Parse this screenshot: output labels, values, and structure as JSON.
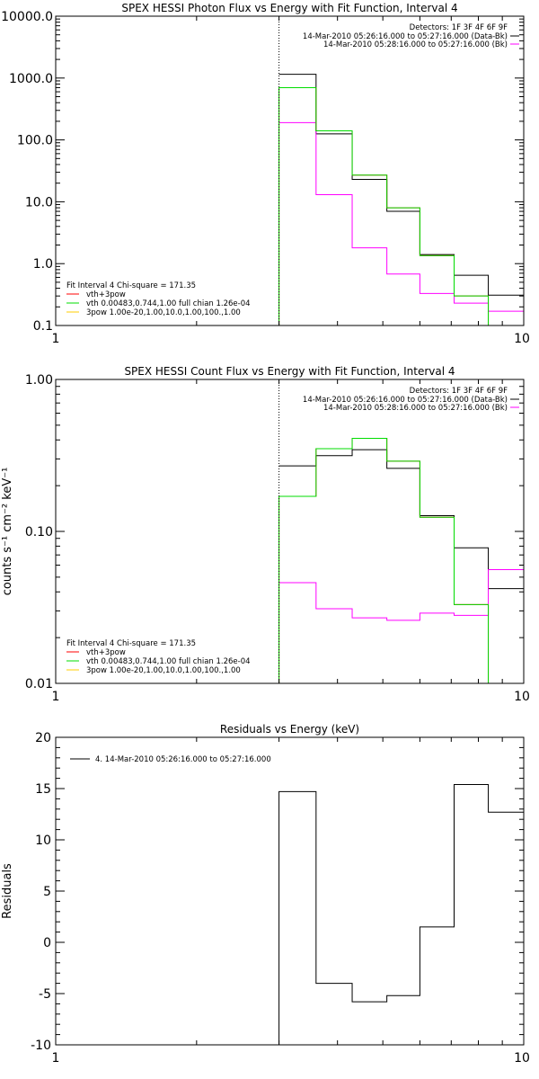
{
  "colors": {
    "frame": "#000000",
    "data_minus_bk": "#000000",
    "bk": "#ff00ff",
    "fit_total": "#ff0000",
    "fit_vth": "#00dd00",
    "fit_3pow": "#ffcc00"
  },
  "chart_data": [
    {
      "type": "line",
      "title": "SPEX HESSI Photon Flux vs Energy with Fit Function, Interval 4",
      "xlabel": "",
      "ylabel": "",
      "xscale": "log",
      "yscale": "log",
      "xlim": [
        1,
        10
      ],
      "ylim": [
        0.1,
        10000
      ],
      "x_tick_labels": [
        "1",
        "10"
      ],
      "y_tick_labels": [
        "0.1",
        "1.0",
        "10.0",
        "100.0",
        "1000.0",
        "10000.0"
      ],
      "legend_top": [
        "Detectors: 1F 3F 4F 6F 9F",
        "14-Mar-2010 05:26:16.000 to 05:27:16.000 (Data-Bk)",
        "14-Mar-2010 05:28:16.000 to 05:27:16.000 (Bk)"
      ],
      "legend_bottom_title": "Fit Interval 4    Chi-square = 171.35",
      "legend_bottom": [
        "vth+3pow",
        "vth 0.00483,0.744,1.00  full chian 1.26e-04",
        "3pow 1.00e-20,1.00,10.0,1.00,100.,1.00"
      ],
      "vline_x": 3.0,
      "edges": [
        3.0,
        3.6,
        4.3,
        5.1,
        6.0,
        7.1,
        8.4,
        10.0
      ],
      "series": [
        {
          "name": "Data-Bk",
          "values": [
            1150,
            125,
            23,
            7,
            1.4,
            0.65,
            0.31
          ]
        },
        {
          "name": "Bk",
          "values": [
            190,
            13,
            1.8,
            0.68,
            0.33,
            0.23,
            0.17
          ]
        },
        {
          "name": "vth+3pow",
          "values": [
            700,
            140,
            27,
            8,
            1.35,
            0.3,
            0.1
          ]
        },
        {
          "name": "vth",
          "values": [
            700,
            140,
            27,
            8,
            1.35,
            0.3,
            0.1
          ]
        }
      ]
    },
    {
      "type": "line",
      "title": "SPEX HESSI Count Flux vs Energy with Fit Function, Interval 4",
      "xlabel": "",
      "ylabel": "counts s⁻¹ cm⁻² keV⁻¹",
      "xscale": "log",
      "yscale": "log",
      "xlim": [
        1,
        10
      ],
      "ylim": [
        0.01,
        1.0
      ],
      "x_tick_labels": [
        "1",
        "10"
      ],
      "y_tick_labels": [
        "0.01",
        "0.10",
        "1.00"
      ],
      "legend_top": [
        "Detectors: 1F 3F 4F 6F 9F",
        "14-Mar-2010 05:26:16.000 to 05:27:16.000 (Data-Bk)",
        "14-Mar-2010 05:28:16.000 to 05:27:16.000 (Bk)"
      ],
      "legend_bottom_title": "Fit Interval 4    Chi-square = 171.35",
      "legend_bottom": [
        "vth+3pow",
        "vth 0.00483,0.744,1.00  full chian 1.26e-04",
        "3pow 1.00e-20,1.00,10.0,1.00,100.,1.00"
      ],
      "vline_x": 3.0,
      "edges": [
        3.0,
        3.6,
        4.3,
        5.1,
        6.0,
        7.1,
        8.4,
        10.0
      ],
      "series": [
        {
          "name": "Data-Bk",
          "values": [
            0.27,
            0.315,
            0.345,
            0.26,
            0.127,
            0.078,
            0.042
          ]
        },
        {
          "name": "Bk",
          "values": [
            0.046,
            0.031,
            0.027,
            0.026,
            0.029,
            0.028,
            0.056
          ]
        },
        {
          "name": "vth+3pow",
          "values": [
            0.17,
            0.35,
            0.41,
            0.29,
            0.124,
            0.033,
            0.008
          ]
        },
        {
          "name": "vth",
          "values": [
            0.17,
            0.35,
            0.41,
            0.29,
            0.124,
            0.033,
            0.008
          ]
        }
      ]
    },
    {
      "type": "line",
      "title": "Residuals vs Energy (keV)",
      "xlabel": "",
      "ylabel": "Residuals",
      "xscale": "log",
      "yscale": "linear",
      "xlim": [
        1,
        10
      ],
      "ylim": [
        -10,
        20
      ],
      "x_tick_labels": [
        "1",
        "10"
      ],
      "y_tick_labels": [
        "-10",
        "-5",
        "0",
        "5",
        "10",
        "15",
        "20"
      ],
      "legend_top": [
        "4. 14-Mar-2010 05:26:16.000 to 05:27:16.000"
      ],
      "edges": [
        3.0,
        3.6,
        4.3,
        5.1,
        6.0,
        7.1,
        8.4,
        10.0
      ],
      "series": [
        {
          "name": "4. 14-Mar-2010 05:26:16.000 to 05:27:16.000",
          "values": [
            14.7,
            -4.0,
            -5.8,
            -5.2,
            1.5,
            15.4,
            12.7
          ]
        }
      ]
    }
  ]
}
